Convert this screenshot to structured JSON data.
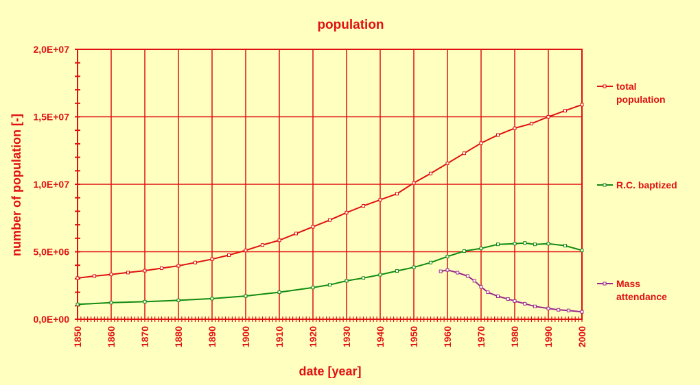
{
  "chart_data": {
    "type": "line",
    "title": "population",
    "xlabel": "date [year]",
    "ylabel": "number of population [-]",
    "xlim": [
      1850,
      2000
    ],
    "ylim": [
      0,
      20000000
    ],
    "x_ticks": [
      1850,
      1860,
      1870,
      1880,
      1890,
      1900,
      1910,
      1920,
      1930,
      1940,
      1950,
      1960,
      1970,
      1980,
      1990,
      2000
    ],
    "y_ticks": [
      0,
      5000000,
      10000000,
      15000000,
      20000000
    ],
    "y_tick_labels": [
      "0,0E+00",
      "5,0E+06",
      "1,0E+07",
      "1,5E+07",
      "2,0E+07"
    ],
    "grid": true,
    "legend_position": "right",
    "series": [
      {
        "name": "total population",
        "color": "#e01010",
        "points": [
          [
            1850,
            3050000
          ],
          [
            1855,
            3200000
          ],
          [
            1860,
            3320000
          ],
          [
            1865,
            3460000
          ],
          [
            1870,
            3600000
          ],
          [
            1875,
            3780000
          ],
          [
            1880,
            3960000
          ],
          [
            1885,
            4200000
          ],
          [
            1890,
            4450000
          ],
          [
            1895,
            4750000
          ],
          [
            1900,
            5100000
          ],
          [
            1905,
            5500000
          ],
          [
            1910,
            5850000
          ],
          [
            1915,
            6350000
          ],
          [
            1920,
            6850000
          ],
          [
            1925,
            7350000
          ],
          [
            1930,
            7900000
          ],
          [
            1935,
            8400000
          ],
          [
            1940,
            8850000
          ],
          [
            1945,
            9300000
          ],
          [
            1950,
            10100000
          ],
          [
            1955,
            10800000
          ],
          [
            1960,
            11550000
          ],
          [
            1965,
            12300000
          ],
          [
            1970,
            13050000
          ],
          [
            1975,
            13650000
          ],
          [
            1980,
            14150000
          ],
          [
            1985,
            14500000
          ],
          [
            1990,
            15000000
          ],
          [
            1995,
            15450000
          ],
          [
            2000,
            15900000
          ]
        ]
      },
      {
        "name": "R.C. baptized",
        "color": "#108a10",
        "points": [
          [
            1850,
            1100000
          ],
          [
            1860,
            1230000
          ],
          [
            1870,
            1300000
          ],
          [
            1880,
            1400000
          ],
          [
            1890,
            1530000
          ],
          [
            1900,
            1720000
          ],
          [
            1910,
            2000000
          ],
          [
            1920,
            2350000
          ],
          [
            1925,
            2550000
          ],
          [
            1930,
            2850000
          ],
          [
            1935,
            3050000
          ],
          [
            1940,
            3300000
          ],
          [
            1945,
            3580000
          ],
          [
            1950,
            3850000
          ],
          [
            1955,
            4200000
          ],
          [
            1960,
            4650000
          ],
          [
            1965,
            5050000
          ],
          [
            1970,
            5250000
          ],
          [
            1975,
            5550000
          ],
          [
            1980,
            5600000
          ],
          [
            1983,
            5650000
          ],
          [
            1986,
            5550000
          ],
          [
            1990,
            5600000
          ],
          [
            1995,
            5450000
          ],
          [
            2000,
            5100000
          ]
        ]
      },
      {
        "name": "Mass attendance",
        "color": "#9a2a8a",
        "points": [
          [
            1958,
            3550000
          ],
          [
            1960,
            3650000
          ],
          [
            1963,
            3450000
          ],
          [
            1966,
            3200000
          ],
          [
            1968,
            2850000
          ],
          [
            1970,
            2400000
          ],
          [
            1972,
            2000000
          ],
          [
            1975,
            1700000
          ],
          [
            1978,
            1500000
          ],
          [
            1980,
            1350000
          ],
          [
            1983,
            1150000
          ],
          [
            1986,
            950000
          ],
          [
            1990,
            800000
          ],
          [
            1993,
            700000
          ],
          [
            1996,
            650000
          ],
          [
            2000,
            550000
          ]
        ]
      }
    ]
  }
}
